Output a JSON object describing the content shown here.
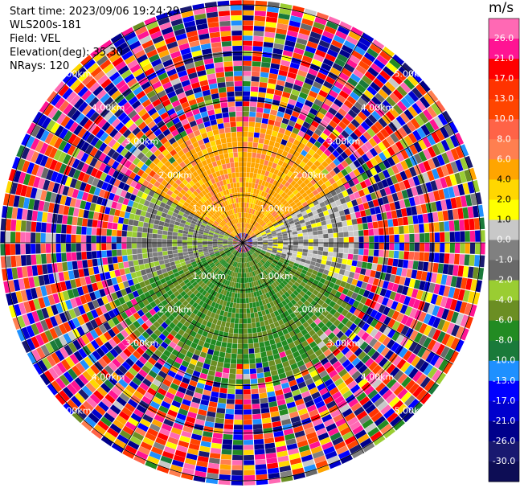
{
  "info": {
    "start_time": "Start time: 2023/09/06 19:24:29",
    "instrument": "WLS200s-181",
    "field": "Field: VEL",
    "elevation": "Elevation(deg): 35.30",
    "nrays": "NRays: 120"
  },
  "colorbar": {
    "unit": "m/s",
    "ticks": [
      "26.0",
      "21.0",
      "17.0",
      "13.0",
      "10.0",
      "8.0",
      "6.0",
      "4.0",
      "2.0",
      "1.0",
      "0.0",
      "-1.0",
      "-2.0",
      "-4.0",
      "-6.0",
      "-8.0",
      "-10.0",
      "-13.0",
      "-17.0",
      "-21.0",
      "-26.0",
      "-30.0"
    ],
    "colors": [
      "#ff69b4",
      "#ff1493",
      "#ff0000",
      "#ff3300",
      "#ff4500",
      "#ff6347",
      "#ff7f50",
      "#ffa500",
      "#ffd700",
      "#ffff00",
      "#c8c8c8",
      "#808080",
      "#696969",
      "#9acd32",
      "#6b8e23",
      "#228b22",
      "#1a7a3a",
      "#1e90ff",
      "#0000ff",
      "#0000cd",
      "#00008b",
      "#191970",
      "#0d0d55"
    ]
  },
  "chart_data": {
    "type": "heatmap",
    "projection": "polar-ppi",
    "field": "VEL",
    "units": "m/s",
    "range_rings_km": [
      1.0,
      2.0,
      3.0,
      4.0,
      5.0
    ],
    "ring_labels": [
      "1.00km",
      "2.00km",
      "3.00km",
      "4.00km",
      "5.00km"
    ],
    "max_range_km": 5.1,
    "nrays": 120,
    "range_gates": 48,
    "vmin": -30.0,
    "vmax": 30.0,
    "description_sectors": [
      {
        "azimuth_from": 300,
        "azimuth_to": 60,
        "range_km": [
          0.2,
          2.6
        ],
        "dominant_value": 5.0
      },
      {
        "azimuth_from": 60,
        "azimuth_to": 110,
        "range_km": [
          0.2,
          2.4
        ],
        "dominant_value": 0.0
      },
      {
        "azimuth_from": 250,
        "azimuth_to": 300,
        "range_km": [
          0.2,
          2.4
        ],
        "dominant_value": -1.5
      },
      {
        "azimuth_from": 110,
        "azimuth_to": 250,
        "range_km": [
          0.2,
          3.0
        ],
        "dominant_value": -6.0
      }
    ]
  }
}
